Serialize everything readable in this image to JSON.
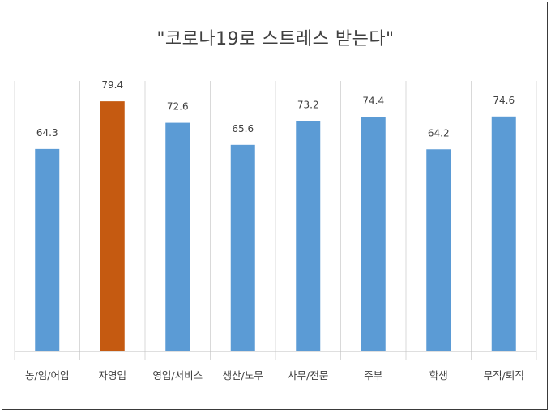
{
  "chart_data": {
    "type": "bar",
    "title": "\"코로나19로 스트레스 받는다\"",
    "categories": [
      "농/임/어업",
      "자영업",
      "영업/서비스",
      "생산/노무",
      "사무/전문",
      "주부",
      "학생",
      "무직/퇴직"
    ],
    "values": [
      64.3,
      79.4,
      72.6,
      65.6,
      73.2,
      74.4,
      64.2,
      74.6
    ],
    "data_labels": [
      "64.3",
      "79.4",
      "72.6",
      "65.6",
      "73.2",
      "74.4",
      "64.2",
      "74.6"
    ],
    "highlight_index": 1,
    "colors": {
      "default": "#5b9bd5",
      "highlight": "#c55a11",
      "grid": "#d9d9d9",
      "axis": "#bfbfbf"
    },
    "ylim": [
      0,
      100
    ],
    "grid": "vertical",
    "xlabel": "",
    "ylabel": ""
  }
}
